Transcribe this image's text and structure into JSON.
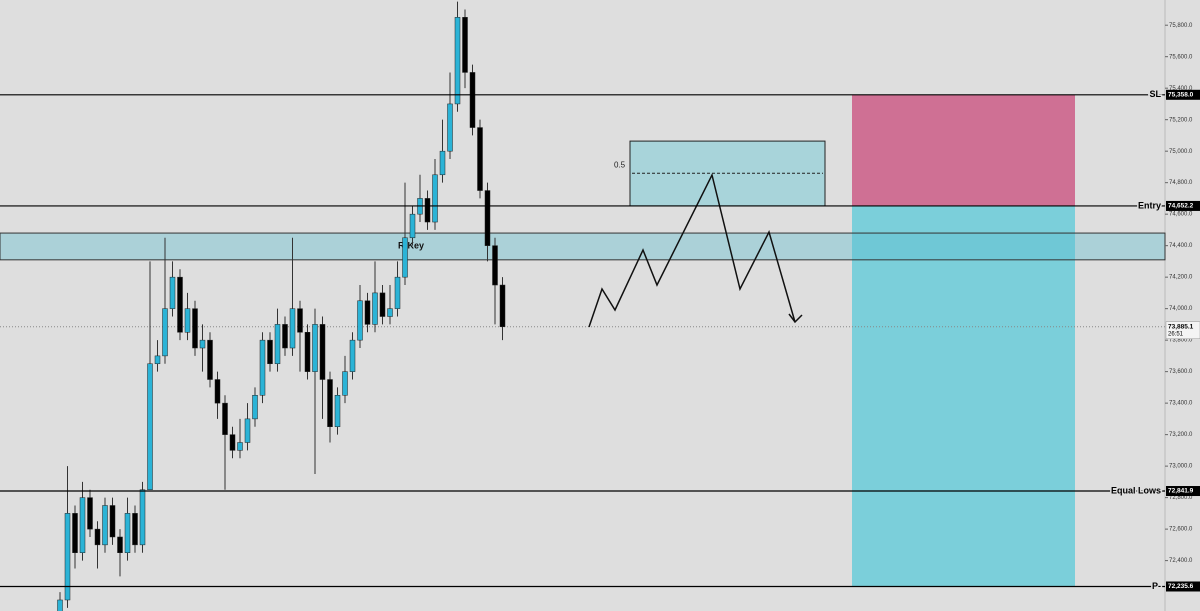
{
  "chart_data": {
    "type": "candlestick",
    "up_color": "#2bb3d6",
    "down_color": "#000000",
    "ylim": [
      72080,
      75960
    ],
    "yticks": [
      {
        "value": 72400,
        "label": "72,400.0"
      },
      {
        "value": 72600,
        "label": "72,600.0"
      },
      {
        "value": 72800,
        "label": "72,800.0"
      },
      {
        "value": 73000,
        "label": "73,000.0"
      },
      {
        "value": 73200,
        "label": "73,200.0"
      },
      {
        "value": 73400,
        "label": "73,400.0"
      },
      {
        "value": 73600,
        "label": "73,600.0"
      },
      {
        "value": 73800,
        "label": "73,800.0"
      },
      {
        "value": 74000,
        "label": "74,000.0"
      },
      {
        "value": 74200,
        "label": "74,200.0"
      },
      {
        "value": 74400,
        "label": "74,400.0"
      },
      {
        "value": 74600,
        "label": "74,600.0"
      },
      {
        "value": 74800,
        "label": "74,800.0"
      },
      {
        "value": 75000,
        "label": "75,000.0"
      },
      {
        "value": 75200,
        "label": "75,200.0"
      },
      {
        "value": 75400,
        "label": "75,400.0"
      },
      {
        "value": 75600,
        "label": "75,600.0"
      },
      {
        "value": 75800,
        "label": "75,800.0"
      }
    ],
    "open": [
      72000,
      72150,
      72700,
      72450,
      72800,
      72600,
      72500,
      72750,
      72550,
      72450,
      72700,
      72500,
      72850,
      73650,
      73700,
      74000,
      74200,
      73850,
      74000,
      73750,
      73800,
      73550,
      73400,
      73200,
      73100,
      73150,
      73300,
      73450,
      73800,
      73650,
      73900,
      73750,
      74000,
      73850,
      73600,
      73900,
      73550,
      73250,
      73450,
      73600,
      73800,
      74050,
      73900,
      74100,
      73950,
      74000,
      74200,
      74450,
      74600,
      74700,
      74550,
      74850,
      75000,
      75300,
      75850,
      75500,
      75150,
      74750,
      74400,
      74150
    ],
    "high": [
      72200,
      73000,
      72750,
      72900,
      72850,
      72650,
      72800,
      72800,
      72600,
      72800,
      72750,
      72900,
      74300,
      73800,
      74450,
      74300,
      74250,
      74100,
      74050,
      73900,
      73850,
      73600,
      73450,
      73250,
      73300,
      73400,
      73500,
      73850,
      73850,
      74000,
      73950,
      74450,
      74050,
      73900,
      74000,
      73950,
      73600,
      73500,
      73700,
      73850,
      74150,
      74100,
      74300,
      74150,
      74150,
      74300,
      74800,
      74650,
      74850,
      74750,
      74950,
      75200,
      75500,
      75950,
      75900,
      75550,
      75200,
      74800,
      74450,
      74200
    ],
    "low": [
      71950,
      72100,
      72350,
      72400,
      72550,
      72350,
      72450,
      72500,
      72300,
      72400,
      72450,
      72450,
      72850,
      73600,
      73650,
      73950,
      73800,
      73800,
      73700,
      73600,
      73500,
      73300,
      72850,
      73050,
      73050,
      73100,
      73250,
      73400,
      73600,
      73600,
      73700,
      73700,
      73600,
      73550,
      72950,
      73300,
      73150,
      73200,
      73400,
      73550,
      73750,
      73850,
      73850,
      73900,
      73900,
      73950,
      74150,
      74400,
      74550,
      74500,
      74500,
      74800,
      74950,
      75250,
      75400,
      75100,
      74700,
      74300,
      73900,
      73800
    ],
    "close": [
      72150,
      72700,
      72450,
      72800,
      72600,
      72500,
      72750,
      72550,
      72450,
      72700,
      72500,
      72850,
      73650,
      73700,
      74000,
      74200,
      73850,
      74000,
      73750,
      73800,
      73550,
      73400,
      73200,
      73100,
      73150,
      73300,
      73450,
      73800,
      73650,
      73900,
      73750,
      74000,
      73850,
      73600,
      73900,
      73550,
      73250,
      73450,
      73600,
      73800,
      74050,
      73900,
      74100,
      73950,
      74000,
      74200,
      74450,
      74600,
      74700,
      74550,
      74850,
      75000,
      75300,
      75850,
      75500,
      75150,
      74750,
      74400,
      74150,
      73885
    ],
    "levels": [
      {
        "name": "SL",
        "value": 75358,
        "value_label": "75,358.0"
      },
      {
        "name": "Entry",
        "value": 74652.2,
        "value_label": "74,652.2"
      },
      {
        "name": "Equal Lows",
        "value": 72841.9,
        "value_label": "72,841.9"
      },
      {
        "name": "P-",
        "value": 72235.6,
        "value_label": "72,235.6"
      }
    ],
    "current": {
      "value": 73885.1,
      "value_label": "73,885.1",
      "countdown": "26:51"
    },
    "zone": {
      "label": "R-Key",
      "low": 74310,
      "high": 74480
    },
    "fib_box": {
      "label": "0.5",
      "top": 75064,
      "mid": 74860,
      "bottom": 74652.2
    }
  }
}
